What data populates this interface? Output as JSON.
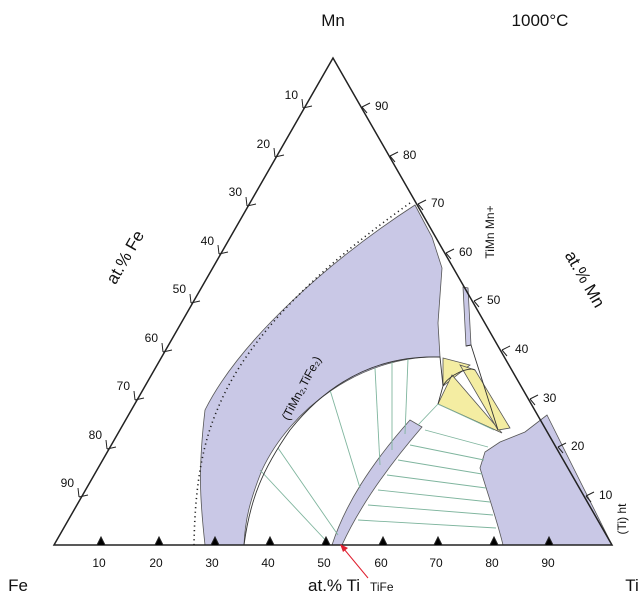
{
  "title": "1000°C",
  "corners": {
    "top": "Mn",
    "left": "Fe",
    "right": "Ti"
  },
  "axes": {
    "bottom": {
      "label": "at.% Ti",
      "ticks": [
        "10",
        "20",
        "30",
        "40",
        "50",
        "60",
        "70",
        "80",
        "90"
      ]
    },
    "left": {
      "label": "at.% Fe",
      "ticks": [
        "10",
        "20",
        "30",
        "40",
        "50",
        "60",
        "70",
        "80",
        "90"
      ]
    },
    "right": {
      "label": "at.% Mn",
      "ticks": [
        "10",
        "20",
        "30",
        "40",
        "50",
        "60",
        "70",
        "80",
        "90"
      ]
    }
  },
  "phase_labels": {
    "laves": "(TiMn₂,TiFe₂)",
    "timn": "TiMn Mn+",
    "ti_ht": "(Ti) ht",
    "tife": "TiFe"
  },
  "colors": {
    "single_phase": "#c9c8e6",
    "three_phase": "#f4eda2",
    "tie_line": "#7fb59e",
    "outline": "#222222",
    "arrow": "#e02030"
  }
}
